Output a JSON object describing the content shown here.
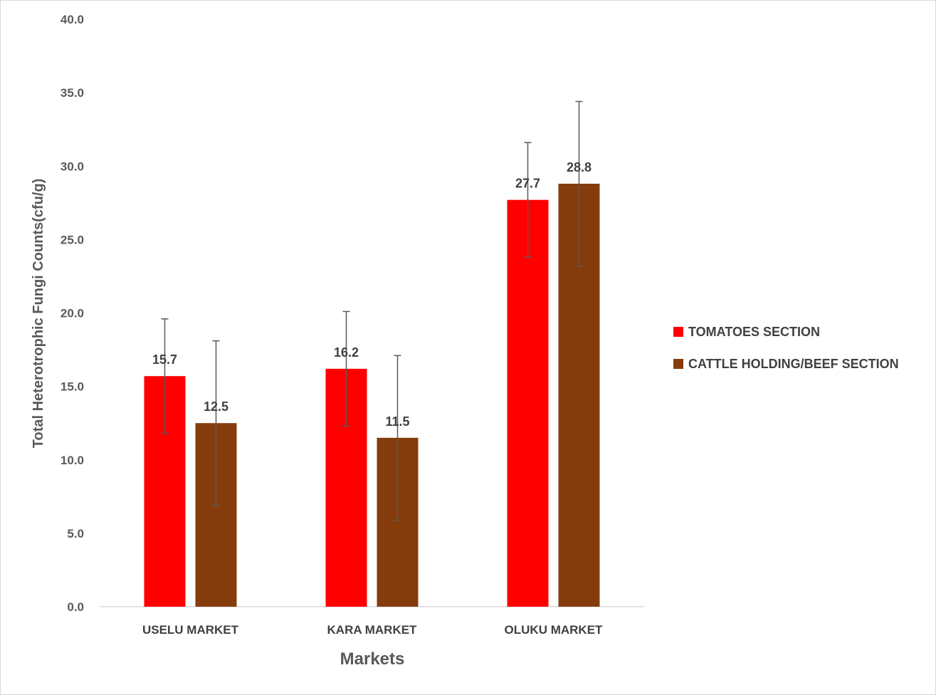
{
  "chart_data": {
    "type": "bar",
    "categories": [
      "USELU MARKET",
      "KARA MARKET",
      "OLUKU MARKET"
    ],
    "series": [
      {
        "name": "TOMATOES SECTION",
        "color": "#ff0000",
        "values": [
          15.7,
          16.2,
          27.7
        ],
        "labels": [
          "15.7",
          "16.2",
          "27.7"
        ],
        "error": [
          3.9,
          3.9,
          3.9
        ]
      },
      {
        "name": "CATTLE HOLDING/BEEF SECTION",
        "color": "#843c0c",
        "values": [
          12.5,
          11.5,
          28.8
        ],
        "labels": [
          "12.5",
          "11.5",
          "28.8"
        ],
        "error": [
          5.6,
          5.6,
          5.6
        ]
      }
    ],
    "xlabel": "Markets",
    "ylabel": "Total Heterotrophic Fungi Counts(cfu/g)",
    "ylim": [
      0,
      40
    ],
    "yticks": [
      "0.0",
      "5.0",
      "10.0",
      "15.0",
      "20.0",
      "25.0",
      "30.0",
      "35.0",
      "40.0"
    ],
    "grid": false,
    "legend": "right"
  }
}
